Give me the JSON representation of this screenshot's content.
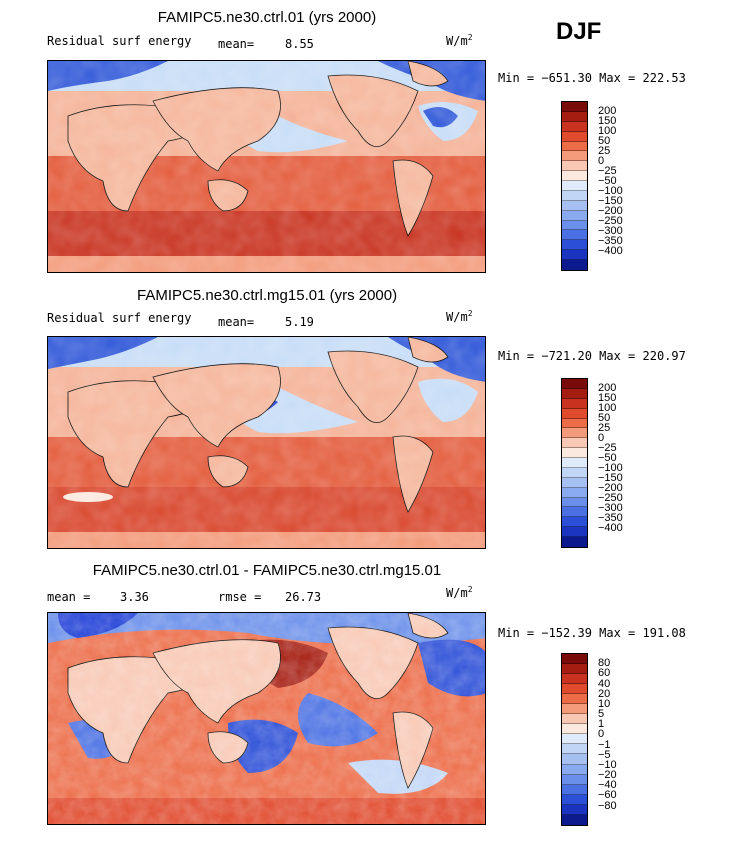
{
  "season": "DJF",
  "units": "W/m",
  "units_sup": "2",
  "colors": {
    "ocean_pos_deep": "#c8321f",
    "ocean_pos_mid": "#e35a3a",
    "ocean_neg_light": "#c6dcf7",
    "land": "#f5b59a",
    "neg_deep": "#1f3fd6",
    "coast": "#000000"
  },
  "panels": [
    {
      "title": "FAMIPC5.ne30.ctrl.01 (yrs 2000)",
      "variable": "Residual surf energy",
      "stat_label": "mean=",
      "stat_value": "8.55",
      "minmax": "Min = −651.30 Max = 222.53",
      "legend_colors": [
        "#7a0b0b",
        "#a51d11",
        "#c8321f",
        "#e04a2d",
        "#ec6c48",
        "#f39a7a",
        "#f8c8b4",
        "#fbe8de",
        "#dfeafb",
        "#c1d6f6",
        "#a6c1f1",
        "#8aaaf0",
        "#6a8fea",
        "#4a70e3",
        "#2c4fd7",
        "#1a34bf",
        "#0c1a8e"
      ],
      "legend_labels": [
        "200",
        "150",
        "100",
        "50",
        "25",
        "0",
        "−25",
        "−50",
        "−100",
        "−150",
        "−200",
        "−250",
        "−300",
        "−350",
        "−400"
      ]
    },
    {
      "title": "FAMIPC5.ne30.ctrl.mg15.01 (yrs 2000)",
      "variable": "Residual surf energy",
      "stat_label": "mean=",
      "stat_value": "5.19",
      "minmax": "Min = −721.20 Max = 220.97",
      "legend_colors": [
        "#7a0b0b",
        "#a51d11",
        "#c8321f",
        "#e04a2d",
        "#ec6c48",
        "#f39a7a",
        "#f8c8b4",
        "#fbe8de",
        "#dfeafb",
        "#c1d6f6",
        "#a6c1f1",
        "#8aaaf0",
        "#6a8fea",
        "#4a70e3",
        "#2c4fd7",
        "#1a34bf",
        "#0c1a8e"
      ],
      "legend_labels": [
        "200",
        "150",
        "100",
        "50",
        "25",
        "0",
        "−25",
        "−50",
        "−100",
        "−150",
        "−200",
        "−250",
        "−300",
        "−350",
        "−400"
      ]
    },
    {
      "title": "FAMIPC5.ne30.ctrl.01 - FAMIPC5.ne30.ctrl.mg15.01",
      "variable": "",
      "stat_label": "mean =",
      "stat_value": "3.36",
      "stat2_label": "rmse =",
      "stat2_value": "26.73",
      "minmax": "Min = −152.39 Max = 191.08",
      "legend_colors": [
        "#7a0b0b",
        "#a51d11",
        "#c8321f",
        "#e04a2d",
        "#ec6c48",
        "#f39a7a",
        "#f8c8b4",
        "#fbe8de",
        "#dfeafb",
        "#c1d6f6",
        "#a6c1f1",
        "#8aaaf0",
        "#6a8fea",
        "#4a70e3",
        "#2c4fd7",
        "#1a34bf",
        "#0c1a8e"
      ],
      "legend_labels": [
        "80",
        "60",
        "40",
        "20",
        "10",
        "5",
        "1",
        "0",
        "−1",
        "−5",
        "−10",
        "−20",
        "−40",
        "−60",
        "−80"
      ]
    }
  ],
  "chart_data": [
    {
      "type": "heatmap",
      "title": "FAMIPC5.ne30.ctrl.01 (yrs 2000)",
      "variable": "Residual surf energy",
      "units": "W/m2",
      "mean": 8.55,
      "min": -651.3,
      "max": 222.53,
      "contour_levels": [
        -400,
        -350,
        -300,
        -250,
        -200,
        -150,
        -100,
        -50,
        -25,
        0,
        25,
        50,
        100,
        150,
        200
      ]
    },
    {
      "type": "heatmap",
      "title": "FAMIPC5.ne30.ctrl.mg15.01 (yrs 2000)",
      "variable": "Residual surf energy",
      "units": "W/m2",
      "mean": 5.19,
      "min": -721.2,
      "max": 220.97,
      "contour_levels": [
        -400,
        -350,
        -300,
        -250,
        -200,
        -150,
        -100,
        -50,
        -25,
        0,
        25,
        50,
        100,
        150,
        200
      ]
    },
    {
      "type": "heatmap",
      "title": "FAMIPC5.ne30.ctrl.01 - FAMIPC5.ne30.ctrl.mg15.01",
      "units": "W/m2",
      "mean": 3.36,
      "rmse": 26.73,
      "min": -152.39,
      "max": 191.08,
      "contour_levels": [
        -80,
        -60,
        -40,
        -20,
        -10,
        -5,
        -1,
        0,
        1,
        5,
        10,
        20,
        40,
        60,
        80
      ]
    }
  ]
}
